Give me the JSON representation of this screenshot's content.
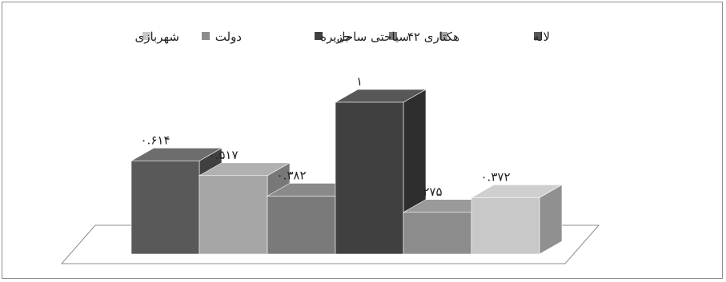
{
  "chart_data": {
    "type": "bar",
    "style": "3d-clustered-column",
    "categories": [
      "لاله",
      "۴۲ هکتاری",
      "سیاحتی ساحل",
      "جزیره",
      "دولت",
      "شهربازی"
    ],
    "values": [
      0.614,
      0.517,
      0.382,
      1,
      0.275,
      0.372
    ],
    "data_labels": [
      "۰.۶۱۴",
      "۰.۵۱۷",
      "۰.۳۸۲",
      "۱",
      "۰.۲۷۵",
      "۰.۳۷۲"
    ],
    "colors": [
      "#595959",
      "#a6a6a6",
      "#7a7a7a",
      "#404040",
      "#8c8c8c",
      "#c8c8c8"
    ],
    "ylim": [
      0,
      1
    ],
    "title": "",
    "xlabel": "",
    "ylabel": "",
    "grid": false,
    "legend_position": "top"
  }
}
